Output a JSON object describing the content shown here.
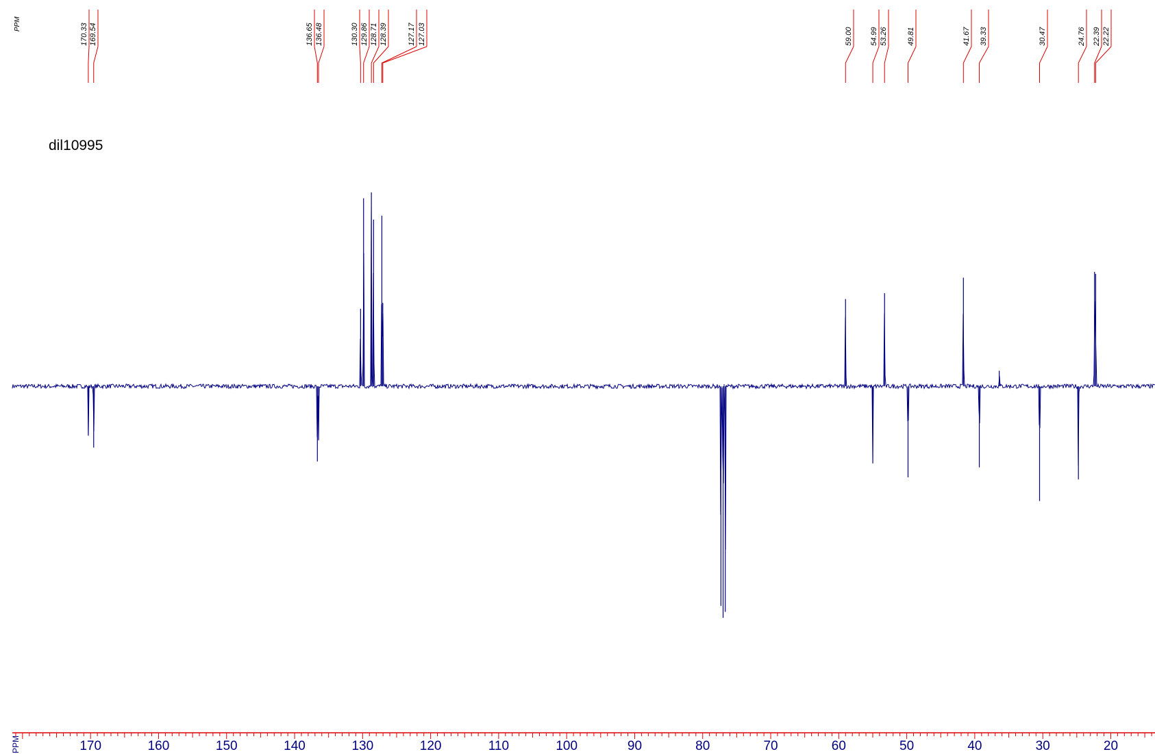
{
  "chart_data": {
    "type": "line",
    "title": "dil10995",
    "axis_unit_label": "PPM",
    "peak_label_unit": "PPM",
    "x_axis": {
      "reversed": true,
      "range": [
        181.5,
        13.5
      ],
      "major_ticks": [
        170,
        160,
        150,
        140,
        130,
        120,
        110,
        100,
        90,
        80,
        70,
        60,
        50,
        40,
        30,
        20
      ],
      "minor_tick_step": 1
    },
    "y_axis": {
      "range": [
        -1.12,
        1.0
      ],
      "baseline": 0
    },
    "peak_labels": [
      "170.33",
      "169.54",
      "136.65",
      "136.48",
      "130.30",
      "129.86",
      "128.71",
      "128.39",
      "127.17",
      "127.03",
      "59.00",
      "54.99",
      "53.26",
      "49.81",
      "41.67",
      "39.33",
      "30.47",
      "24.76",
      "22.39",
      "22.22"
    ],
    "series": [
      {
        "color": "#000080",
        "peaks": [
          {
            "x": 170.33,
            "y": -0.25
          },
          {
            "x": 169.54,
            "y": -0.31
          },
          {
            "x": 136.65,
            "y": -0.38
          },
          {
            "x": 136.48,
            "y": -0.27
          },
          {
            "x": 130.3,
            "y": 0.4
          },
          {
            "x": 129.86,
            "y": 0.97
          },
          {
            "x": 128.71,
            "y": 1.0
          },
          {
            "x": 128.39,
            "y": 0.86
          },
          {
            "x": 127.17,
            "y": 0.88
          },
          {
            "x": 127.03,
            "y": 0.43
          },
          {
            "x": 77.32,
            "y": -1.11
          },
          {
            "x": 77.0,
            "y": -1.17
          },
          {
            "x": 76.68,
            "y": -1.14
          },
          {
            "x": 59.0,
            "y": 0.45
          },
          {
            "x": 54.99,
            "y": -0.39
          },
          {
            "x": 53.26,
            "y": 0.48
          },
          {
            "x": 49.81,
            "y": -0.46
          },
          {
            "x": 41.67,
            "y": 0.56
          },
          {
            "x": 39.33,
            "y": -0.41
          },
          {
            "x": 36.4,
            "y": 0.08
          },
          {
            "x": 30.47,
            "y": -0.58
          },
          {
            "x": 24.76,
            "y": -0.47
          },
          {
            "x": 22.39,
            "y": 0.59
          },
          {
            "x": 22.22,
            "y": 0.58
          }
        ]
      }
    ],
    "colors": {
      "spectrum": "#000080",
      "labels": "#dd0000",
      "axis": "#dd0000"
    }
  }
}
